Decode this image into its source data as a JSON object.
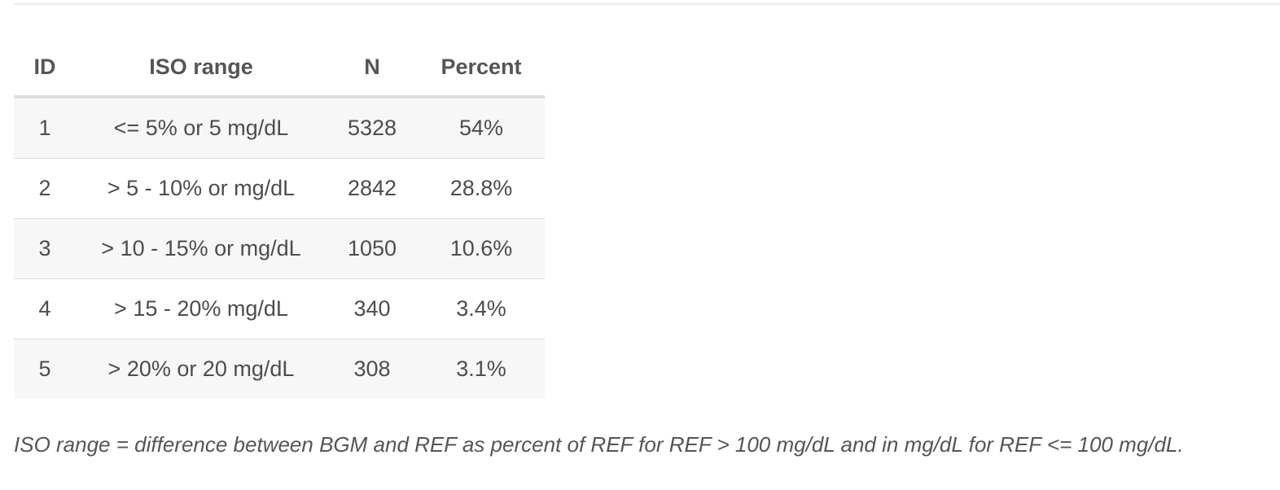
{
  "table": {
    "headers": [
      "ID",
      "ISO range",
      "N",
      "Percent"
    ],
    "rows": [
      [
        "1",
        "<= 5% or 5 mg/dL",
        "5328",
        "54%"
      ],
      [
        "2",
        "> 5 - 10% or mg/dL",
        "2842",
        "28.8%"
      ],
      [
        "3",
        "> 10 - 15% or mg/dL",
        "1050",
        "10.6%"
      ],
      [
        "4",
        "> 15 - 20% mg/dL",
        "340",
        "3.4%"
      ],
      [
        "5",
        "> 20% or 20 mg/dL",
        "308",
        "3.1%"
      ]
    ]
  },
  "caption": "ISO range = difference between BGM and REF as percent of REF for REF > 100 mg/dL and in mg/dL for REF <= 100 mg/dL."
}
